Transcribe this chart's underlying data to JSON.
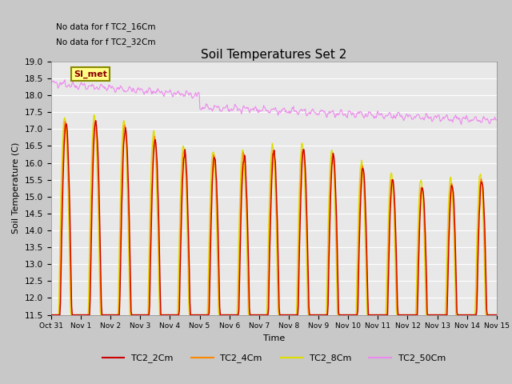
{
  "title": "Soil Temperatures Set 2",
  "xlabel": "Time",
  "ylabel": "Soil Temperature (C)",
  "ylim": [
    11.5,
    19.0
  ],
  "yticks": [
    11.5,
    12.0,
    12.5,
    13.0,
    13.5,
    14.0,
    14.5,
    15.0,
    15.5,
    16.0,
    16.5,
    17.0,
    17.5,
    18.0,
    18.5,
    19.0
  ],
  "colors": {
    "TC2_2Cm": "#cc0000",
    "TC2_4Cm": "#ff8800",
    "TC2_8Cm": "#dddd00",
    "TC2_50Cm": "#ee88ee"
  },
  "annotation1": "No data for f TC2_16Cm",
  "annotation2": "No data for f TC2_32Cm",
  "si_met_label": "SI_met",
  "xtick_labels": [
    "Oct 31",
    "Nov 1",
    "Nov 2",
    "Nov 3",
    "Nov 4",
    "Nov 5",
    "Nov 6",
    "Nov 7",
    "Nov 8",
    "Nov 9",
    "Nov 10",
    "Nov 11",
    "Nov 12",
    "Nov 13",
    "Nov 14",
    "Nov 15"
  ],
  "xtick_positions": [
    0,
    1,
    2,
    3,
    4,
    5,
    6,
    7,
    8,
    9,
    10,
    11,
    12,
    13,
    14,
    15
  ]
}
